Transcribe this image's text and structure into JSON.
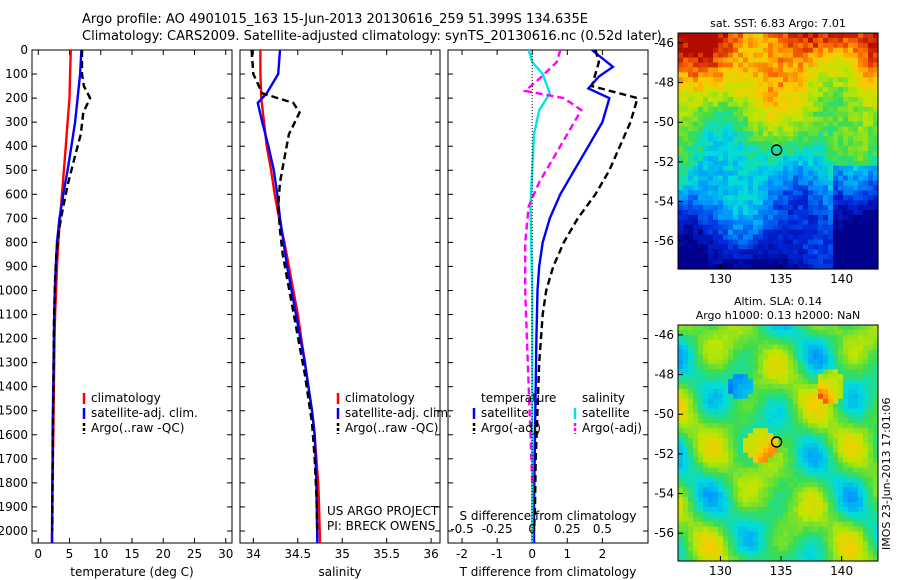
{
  "header": {
    "line1": "Argo profile: AO 4901015_163 15-Jun-2013 20130616_259 51.399S 134.635E",
    "line2": "Climatology: CARS2009. Satellite-adjusted climatology: synTS_20130616.nc (0.52d later)"
  },
  "colors": {
    "climatology": "#ff0000",
    "satellite": "#0000ff",
    "argo": "#000000",
    "salinity_sat": "#00e5e5",
    "salinity_argo": "#ff00ff"
  },
  "chart_data": [
    {
      "id": "temperature",
      "type": "line",
      "xlabel": "temperature (deg C)",
      "ylabel": "",
      "xlim": [
        -1,
        31
      ],
      "ylim": [
        2050,
        0
      ],
      "xticks": [
        0,
        5,
        10,
        15,
        20,
        25,
        30
      ],
      "yticks": [
        0,
        100,
        200,
        300,
        400,
        500,
        600,
        700,
        800,
        900,
        1000,
        1100,
        1200,
        1300,
        1400,
        1500,
        1600,
        1700,
        1800,
        1900,
        2000
      ],
      "legend": [
        "climatology",
        "satellite-adj. clim.",
        "Argo(..raw -QC)"
      ],
      "series": [
        {
          "name": "climatology",
          "style": "solid",
          "color": "#ff0000",
          "x": [
            5.2,
            5.1,
            5.0,
            4.7,
            4.4,
            4.1,
            3.8,
            3.5,
            3.2,
            3.0,
            2.85,
            2.7,
            2.6,
            2.55,
            2.5,
            2.45,
            2.4,
            2.35,
            2.3,
            2.25,
            2.2
          ],
          "y": [
            0,
            100,
            200,
            300,
            400,
            500,
            600,
            700,
            800,
            900,
            1000,
            1100,
            1200,
            1300,
            1400,
            1500,
            1600,
            1700,
            1800,
            1900,
            2050
          ]
        },
        {
          "name": "satellite-adj. clim.",
          "style": "solid",
          "color": "#0000ff",
          "x": [
            6.9,
            6.7,
            6.3,
            5.9,
            5.3,
            4.7,
            4.0,
            3.4,
            3.0,
            2.8,
            2.65,
            2.55,
            2.5,
            2.45,
            2.4,
            2.35,
            2.3,
            2.3,
            2.25,
            2.2
          ],
          "y": [
            0,
            100,
            200,
            300,
            400,
            500,
            600,
            700,
            800,
            900,
            1000,
            1100,
            1200,
            1300,
            1400,
            1500,
            1600,
            1700,
            1800,
            2050
          ]
        },
        {
          "name": "Argo(..raw -QC)",
          "style": "dashed",
          "color": "#000000",
          "x": [
            7.0,
            7.0,
            7.3,
            8.3,
            7.2,
            6.8,
            5.8,
            4.8,
            4.0,
            3.3,
            2.9,
            2.7,
            2.6,
            2.5,
            2.45,
            2.4,
            2.35,
            2.3,
            2.25
          ],
          "y": [
            0,
            100,
            150,
            200,
            260,
            350,
            450,
            550,
            650,
            750,
            850,
            950,
            1050,
            1150,
            1300,
            1450,
            1600,
            1800,
            2000
          ]
        }
      ]
    },
    {
      "id": "salinity",
      "type": "line",
      "xlabel": "salinity",
      "ylabel": "",
      "xlim": [
        33.85,
        36.1
      ],
      "ylim": [
        2050,
        0
      ],
      "xticks": [
        34,
        34.5,
        35,
        35.5,
        36
      ],
      "legend": [
        "climatology",
        "satellite-adj. clim.",
        "Argo(..raw -QC)"
      ],
      "annotation": [
        "US ARGO PROJECT",
        "PI: BRECK OWENS"
      ],
      "series": [
        {
          "name": "climatology",
          "style": "solid",
          "color": "#ff0000",
          "x": [
            34.08,
            34.08,
            34.09,
            34.12,
            34.15,
            34.2,
            34.24,
            34.29,
            34.35,
            34.4,
            34.45,
            34.5,
            34.54,
            34.58,
            34.62,
            34.66,
            34.69,
            34.71,
            34.73,
            34.74,
            34.75
          ],
          "y": [
            0,
            100,
            200,
            300,
            400,
            500,
            600,
            700,
            800,
            900,
            1000,
            1100,
            1200,
            1300,
            1400,
            1500,
            1600,
            1700,
            1800,
            1900,
            2050
          ]
        },
        {
          "name": "satellite-adj. clim.",
          "style": "solid",
          "color": "#0000ff",
          "x": [
            34.3,
            34.28,
            34.15,
            34.05,
            34.1,
            34.17,
            34.23,
            34.27,
            34.3,
            34.34,
            34.38,
            34.43,
            34.48,
            34.53,
            34.58,
            34.62,
            34.66,
            34.69,
            34.71,
            34.72
          ],
          "y": [
            0,
            100,
            180,
            220,
            300,
            400,
            500,
            600,
            700,
            800,
            900,
            1000,
            1100,
            1200,
            1300,
            1400,
            1500,
            1600,
            1800,
            2050
          ]
        },
        {
          "name": "Argo(..raw -QC)",
          "style": "dashed",
          "color": "#000000",
          "x": [
            33.98,
            34.0,
            34.1,
            34.45,
            34.52,
            34.4,
            34.35,
            34.3,
            34.28,
            34.3,
            34.33,
            34.38,
            34.43,
            34.48,
            34.53,
            34.58,
            34.62,
            34.66,
            34.69,
            34.71,
            34.72
          ],
          "y": [
            0,
            100,
            180,
            220,
            260,
            350,
            450,
            550,
            650,
            750,
            850,
            950,
            1050,
            1150,
            1250,
            1350,
            1450,
            1550,
            1700,
            1850,
            2000
          ]
        }
      ]
    },
    {
      "id": "difference",
      "type": "line",
      "xlabel": "T difference from climatology",
      "x2label": "S difference from climatology",
      "xlim": [
        -2.4,
        3.3
      ],
      "ylim": [
        2050,
        0
      ],
      "xticks": [
        -2,
        -1,
        0,
        1,
        2
      ],
      "x2ticks": [
        -0.5,
        -0.25,
        0,
        0.25,
        0.5
      ],
      "x2ticklabels": [
        "-0.5",
        "-0.25",
        "0",
        "0.25",
        "0.5"
      ],
      "legend_temperature": {
        "title": "temperature",
        "items": [
          "satellite",
          "Argo(-adj)"
        ]
      },
      "legend_salinity": {
        "title": "salinity",
        "items": [
          "satellite",
          "Argo(-adj)"
        ]
      },
      "series": [
        {
          "name": "temperature satellite",
          "style": "solid",
          "color": "#0000ff",
          "x": [
            1.7,
            2.3,
            1.9,
            1.6,
            2.2,
            2.0,
            1.6,
            1.2,
            0.8,
            0.5,
            0.3,
            0.2,
            0.15,
            0.12,
            0.1,
            0.08,
            0.07,
            0.06,
            0.05,
            0.05
          ],
          "y": [
            0,
            70,
            110,
            160,
            200,
            300,
            400,
            500,
            600,
            700,
            800,
            900,
            1000,
            1200,
            1400,
            1600,
            1700,
            1800,
            1900,
            2050
          ]
        },
        {
          "name": "temperature Argo(-adj)",
          "style": "dashed",
          "color": "#000000",
          "x": [
            1.8,
            1.9,
            1.7,
            3.0,
            2.8,
            2.5,
            2.2,
            1.8,
            1.3,
            0.9,
            0.6,
            0.4,
            0.3,
            0.2,
            0.15,
            0.1,
            0.08,
            0.05
          ],
          "y": [
            0,
            50,
            150,
            200,
            300,
            400,
            500,
            600,
            700,
            800,
            900,
            1000,
            1100,
            1300,
            1500,
            1700,
            1900,
            2000
          ]
        },
        {
          "name": "salinity satellite",
          "style": "solid",
          "color": "#00e5e5",
          "x": [
            -0.1,
            0.0,
            0.3,
            0.5,
            0.2,
            0.05,
            0.0,
            -0.05,
            -0.03,
            0.0,
            0.0,
            0.0,
            0.0,
            0.0
          ],
          "y": [
            0,
            50,
            100,
            180,
            250,
            350,
            500,
            650,
            800,
            1000,
            1300,
            1600,
            1800,
            2050
          ]
        },
        {
          "name": "salinity Argo(-adj)",
          "style": "dashed",
          "color": "#ff00ff",
          "x": [
            0.8,
            0.7,
            0.2,
            -0.2,
            0.9,
            1.4,
            1.0,
            0.6,
            0.2,
            -0.1,
            -0.2,
            -0.2,
            -0.15,
            -0.1,
            -0.05,
            0.0
          ],
          "y": [
            0,
            50,
            120,
            170,
            200,
            250,
            350,
            450,
            550,
            650,
            800,
            1000,
            1200,
            1400,
            1600,
            1800
          ]
        }
      ]
    },
    {
      "id": "sst-map",
      "type": "heatmap",
      "title": "sat. SST: 6.83 Argo: 7.01",
      "xticks": [
        130,
        135,
        140
      ],
      "yticks": [
        -46,
        -48,
        -50,
        -52,
        -54,
        -56
      ],
      "xlim": [
        126.5,
        143.0
      ],
      "ylim": [
        -57.4,
        -45.5
      ],
      "marker": {
        "lon": 134.635,
        "lat": -51.399
      }
    },
    {
      "id": "sla-map",
      "type": "heatmap",
      "title": [
        "Altim. SLA: 0.14",
        "Argo h1000: 0.13 h2000: NaN"
      ],
      "xticks": [
        130,
        135,
        140
      ],
      "yticks": [
        -46,
        -48,
        -50,
        -52,
        -54,
        -56
      ],
      "xlim": [
        126.5,
        143.0
      ],
      "ylim": [
        -57.4,
        -45.5
      ],
      "marker": {
        "lon": 134.635,
        "lat": -51.399
      }
    }
  ],
  "footer": {
    "stamp": "IMOS 23-Jun-2013 17:01:06"
  }
}
